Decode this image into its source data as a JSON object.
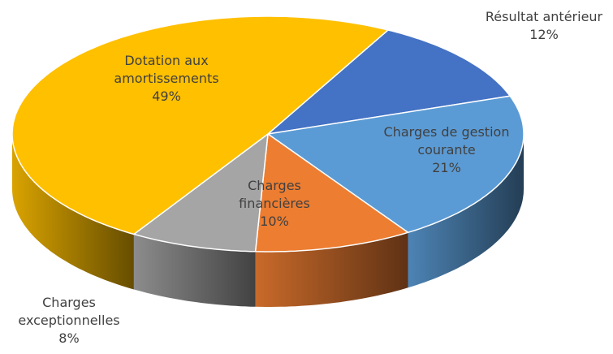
{
  "chart_data": {
    "type": "pie3d",
    "categories": [
      "Résultat antérieur",
      "Charges de gestion courante",
      "Charges financières",
      "Charges exceptionnelles",
      "Dotation aux amortissements"
    ],
    "values": [
      12,
      21,
      10,
      8,
      49
    ],
    "value_labels": [
      "12%",
      "21%",
      "10%",
      "8%",
      "49%"
    ],
    "colors": [
      "#4472c4",
      "#5b9bd5",
      "#ed7d31",
      "#a5a5a5",
      "#ffc000"
    ]
  }
}
